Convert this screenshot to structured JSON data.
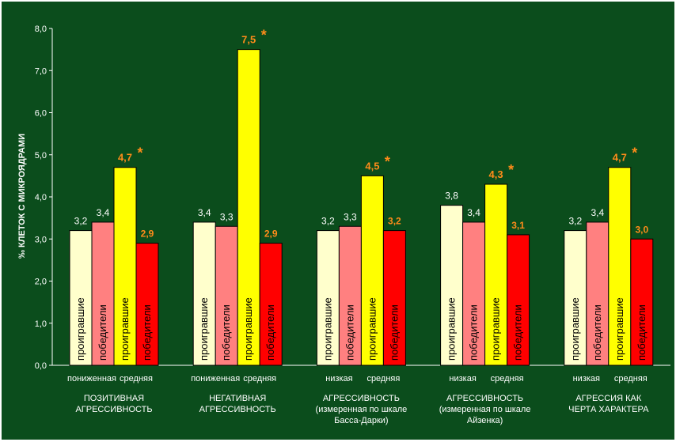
{
  "chart_data": {
    "type": "bar",
    "ylabel": "‰ КЛЕТОК С МИКРОЯДРАМИ",
    "ylim": [
      0,
      8
    ],
    "yticks": [
      "0,0",
      "1,0",
      "2,0",
      "3,0",
      "4,0",
      "5,0",
      "6,0",
      "7,0",
      "8,0"
    ],
    "grid": false,
    "colors": {
      "background": "#0b4d1c",
      "frame": "#ffffff",
      "text": "#ffffff",
      "accent_label": "#ff8c1a"
    },
    "bar_labels": [
      "проигравшие",
      "победители",
      "проигравшие",
      "победители"
    ],
    "series_colors": [
      "#ffffcc",
      "#ff8080",
      "#ffff00",
      "#ff0000"
    ],
    "groups": [
      {
        "name": [
          "ПОЗИТИВНАЯ",
          "АГРЕССИВНОСТЬ"
        ],
        "sublabels": [
          "пониженная",
          "средняя"
        ],
        "values": [
          3.2,
          3.4,
          4.7,
          2.9
        ],
        "value_labels": [
          "3,2",
          "3,4",
          "4,7",
          "2,9"
        ],
        "marks": [
          "",
          "",
          "*",
          ""
        ]
      },
      {
        "name": [
          "НЕГАТИВНАЯ",
          "АГРЕССИВНОСТЬ"
        ],
        "sublabels": [
          "пониженная",
          "средняя"
        ],
        "values": [
          3.4,
          3.3,
          7.5,
          2.9
        ],
        "value_labels": [
          "3,4",
          "3,3",
          "7,5",
          "2,9"
        ],
        "marks": [
          "",
          "",
          "*",
          ""
        ]
      },
      {
        "name": [
          "АГРЕССИВНОСТЬ",
          "(измеренная по шкале",
          "Басса-Дарки)"
        ],
        "sublabels": [
          "низкая",
          "средняя"
        ],
        "values": [
          3.2,
          3.3,
          4.5,
          3.2
        ],
        "value_labels": [
          "3,2",
          "3,3",
          "4,5",
          "3,2"
        ],
        "marks": [
          "",
          "",
          "*",
          ""
        ]
      },
      {
        "name": [
          "АГРЕССИВНОСТЬ",
          "(измеренная по шкале",
          "Айзенка)"
        ],
        "sublabels": [
          "низкая",
          "средняя"
        ],
        "values": [
          3.8,
          3.4,
          4.3,
          3.1
        ],
        "value_labels": [
          "3,8",
          "3,4",
          "4,3",
          "3,1"
        ],
        "marks": [
          "",
          "",
          "*",
          ""
        ]
      },
      {
        "name": [
          "АГРЕССИЯ КАК",
          "ЧЕРТА ХАРАКТЕРА"
        ],
        "sublabels": [
          "низкая",
          "средняя"
        ],
        "values": [
          3.2,
          3.4,
          4.7,
          3.0
        ],
        "value_labels": [
          "3,2",
          "3,4",
          "4,7",
          "3,0"
        ],
        "marks": [
          "",
          "",
          "*",
          ""
        ]
      }
    ]
  }
}
